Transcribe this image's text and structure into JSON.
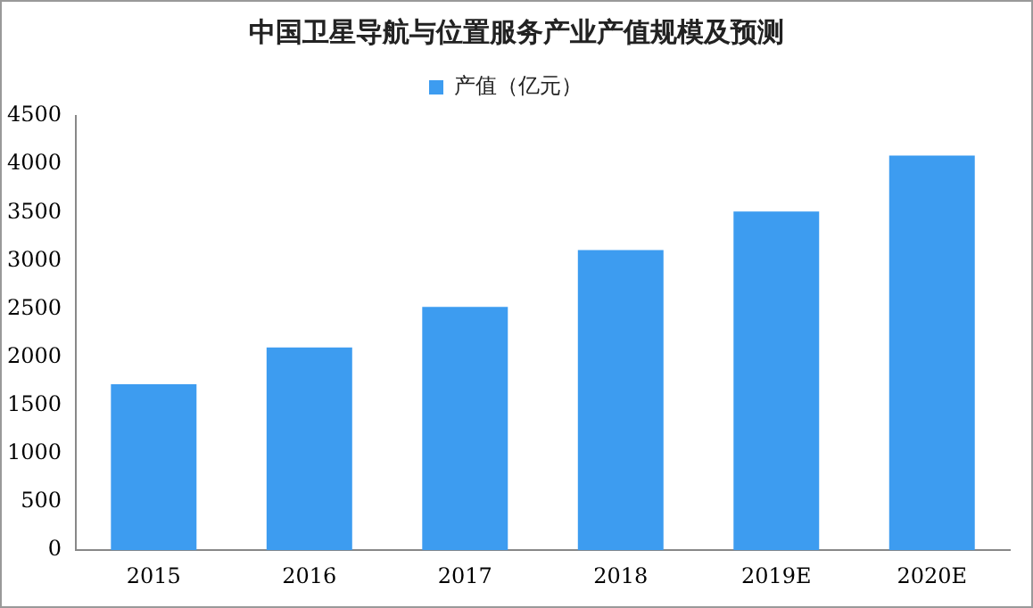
{
  "chart_data": {
    "type": "bar",
    "title": "中国卫星导航与位置服务产业产值规模及预测",
    "categories": [
      "2015",
      "2016",
      "2017",
      "2018",
      "2019E",
      "2020E"
    ],
    "series": [
      {
        "name": "产值（亿元）",
        "color": "#3d9cf0",
        "values": [
          1720,
          2100,
          2520,
          3110,
          3510,
          4090
        ]
      }
    ],
    "ylim": [
      0,
      4500
    ],
    "yticks": [
      0,
      500,
      1000,
      1500,
      2000,
      2500,
      3000,
      3500,
      4000,
      4500
    ],
    "grid": false,
    "legend": "top"
  }
}
